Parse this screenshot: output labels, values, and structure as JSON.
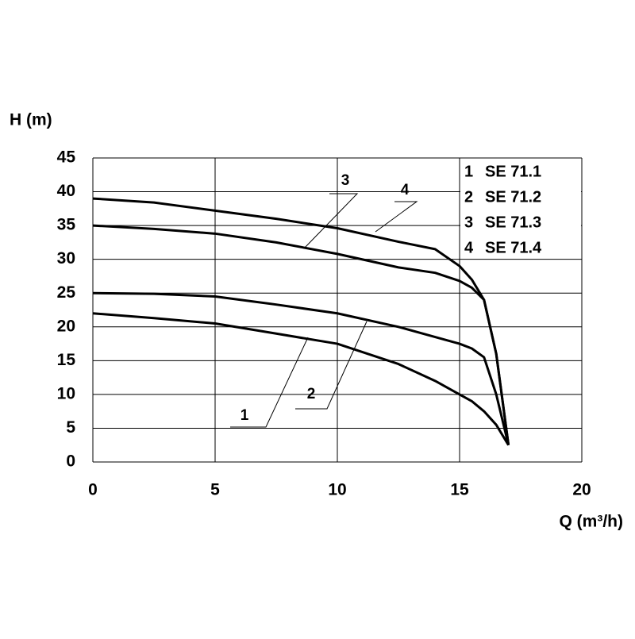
{
  "chart_data": {
    "type": "line",
    "ylabel": "H (m)",
    "xlabel": "Q (m³/h)",
    "xlim": [
      0,
      20
    ],
    "xticks": [
      0,
      5,
      10,
      15,
      20
    ],
    "ylim": [
      0,
      45
    ],
    "yticks": [
      0,
      5,
      10,
      15,
      20,
      25,
      30,
      35,
      40,
      45
    ],
    "grid": true,
    "legend": "top-right",
    "x": [
      0,
      2.5,
      5,
      7.5,
      10,
      12.5,
      14,
      15,
      15.5,
      16,
      16.5,
      17
    ],
    "series": [
      {
        "label": "1",
        "name": "SE 71.1",
        "color": "#000000",
        "values": [
          22,
          21.3,
          20.5,
          19,
          17.5,
          14.5,
          12,
          10,
          9,
          7.5,
          5.5,
          2.5
        ]
      },
      {
        "label": "2",
        "name": "SE 71.2",
        "color": "#000000",
        "values": [
          25,
          24.9,
          24.5,
          23.3,
          22,
          20,
          18.5,
          17.5,
          16.8,
          15.5,
          10,
          2.5
        ]
      },
      {
        "label": "3",
        "name": "SE 71.3",
        "color": "#000000",
        "values": [
          35,
          34.5,
          33.8,
          32.5,
          30.8,
          28.8,
          28,
          26.8,
          25.8,
          24,
          16,
          2.5
        ]
      },
      {
        "label": "4",
        "name": "SE 71.4",
        "color": "#000000",
        "values": [
          39,
          38.4,
          37.2,
          36,
          34.6,
          32.6,
          31.5,
          29,
          27,
          24,
          16,
          2.5
        ]
      }
    ]
  }
}
